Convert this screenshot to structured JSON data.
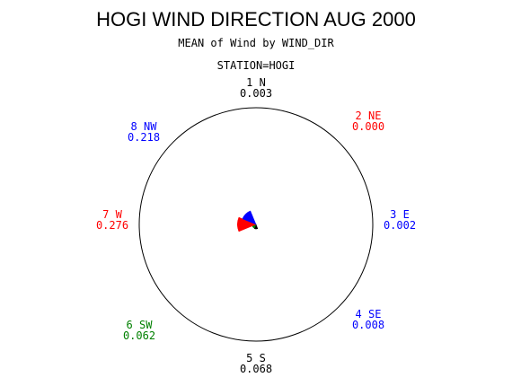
{
  "chart_data": {
    "type": "star",
    "title": "HOGI WIND DIRECTION AUG 2000",
    "subtitle": "MEAN of Wind by WIND_DIR",
    "station": "STATION=HOGI",
    "categories": [
      "1 N",
      "2 NE",
      "3 E",
      "4 SE",
      "5 S",
      "6 SW",
      "7 W",
      "8 NW"
    ],
    "values": [
      0.003,
      0,
      0.002,
      0.008,
      0.068,
      0.062,
      0.276,
      0.218
    ],
    "value_labels": [
      "0.003",
      "0.000",
      "0.002",
      "0.008",
      "0.068",
      "0.062",
      "0.276",
      "0.218"
    ],
    "colors": [
      "#000000",
      "#ff0000",
      "#0000ff",
      "#0000ff",
      "#000000",
      "#008000",
      "#ff0000",
      "#0000ff"
    ]
  }
}
